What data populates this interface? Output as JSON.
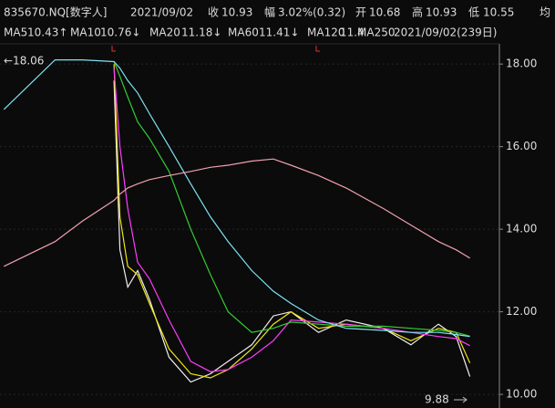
{
  "quote": {
    "symbol": "835670.NQ[数字人]",
    "date": "2021/09/02",
    "fields": [
      {
        "label": "收",
        "value": "10.93",
        "color": "#ff3b3b"
      },
      {
        "label": "幅",
        "value": "3.02%(0.32)",
        "color": "#ff3b3b"
      },
      {
        "label": "开",
        "value": "10.68",
        "color": "#ff3b3b"
      },
      {
        "label": "高",
        "value": "10.93",
        "color": "#ff3b3b"
      },
      {
        "label": "低",
        "value": "10.55",
        "color": "#2ecc40"
      }
    ],
    "extra": "均",
    "range_label": "2021/09/02(239日)"
  },
  "chart_data": {
    "type": "line",
    "x": [
      2,
      28,
      42,
      58,
      61,
      65,
      70,
      76,
      86,
      97,
      107,
      116,
      128,
      139,
      148,
      162,
      176,
      195,
      209,
      223,
      232,
      239
    ],
    "xlim": [
      0,
      254
    ],
    "ylim": [
      9.67,
      18.49
    ],
    "yticks": [
      {
        "value": 10,
        "label": "10.00"
      },
      {
        "value": 12,
        "label": "12.00"
      },
      {
        "value": 14,
        "label": "14.00"
      },
      {
        "value": 16,
        "label": "16.00"
      },
      {
        "value": 18,
        "label": "18.00"
      }
    ],
    "grid": true,
    "annotations": [
      "←18.06",
      "9.88"
    ],
    "series": [
      {
        "name": "MA5",
        "color": "#f0f0f0",
        "legend_value": "10.43↑",
        "legend_color": "#ffa53d",
        "values": [
          null,
          null,
          null,
          17.6,
          13.5,
          12.6,
          13.0,
          12.3,
          10.9,
          10.3,
          10.5,
          10.8,
          11.2,
          11.9,
          12.0,
          11.5,
          11.8,
          11.6,
          11.2,
          11.7,
          11.4,
          10.43
        ]
      },
      {
        "name": "MA10",
        "color": "#f2e416",
        "legend_value": "10.76↓",
        "legend_color": "#f2e416",
        "values": [
          null,
          null,
          null,
          18.0,
          14.3,
          13.1,
          12.9,
          12.2,
          11.1,
          10.5,
          10.4,
          10.6,
          11.1,
          11.7,
          12.0,
          11.6,
          11.7,
          11.6,
          11.3,
          11.6,
          11.5,
          10.76
        ]
      },
      {
        "name": "MA20",
        "color": "#ff3cff",
        "legend_value": "11.18↓",
        "legend_color": "#ff3cff",
        "values": [
          null,
          null,
          null,
          17.9,
          16.0,
          14.5,
          13.2,
          12.8,
          11.8,
          10.8,
          10.55,
          10.6,
          10.9,
          11.3,
          11.8,
          11.75,
          11.7,
          11.6,
          11.5,
          11.4,
          11.35,
          11.18
        ]
      },
      {
        "name": "MA60",
        "color": "#33cc33",
        "legend_value": "11.41↓",
        "legend_color": "#33cc33",
        "values": [
          null,
          null,
          null,
          18.06,
          17.7,
          17.2,
          16.6,
          16.2,
          15.4,
          14.0,
          12.9,
          12.0,
          11.5,
          11.6,
          11.75,
          11.7,
          11.65,
          11.65,
          11.6,
          11.55,
          11.5,
          11.41
        ]
      },
      {
        "name": "MA120",
        "color": "#7fe3f0",
        "legend_value": "11.4",
        "legend_color": "#7fe3f0",
        "values": [
          16.9,
          18.1,
          18.1,
          18.06,
          17.9,
          17.6,
          17.3,
          16.8,
          16.0,
          15.1,
          14.3,
          13.7,
          13.0,
          12.5,
          12.2,
          11.8,
          11.6,
          11.55,
          11.5,
          11.5,
          11.45,
          11.4
        ]
      },
      {
        "name": "MA250",
        "color": "#f0a0b0",
        "legend_value": "",
        "legend_color": "#f0a0b0",
        "values": [
          13.1,
          13.7,
          14.2,
          14.7,
          14.85,
          15.0,
          15.1,
          15.2,
          15.3,
          15.4,
          15.5,
          15.55,
          15.65,
          15.7,
          15.55,
          15.3,
          15.0,
          14.5,
          14.1,
          13.7,
          13.5,
          13.3
        ]
      }
    ]
  }
}
